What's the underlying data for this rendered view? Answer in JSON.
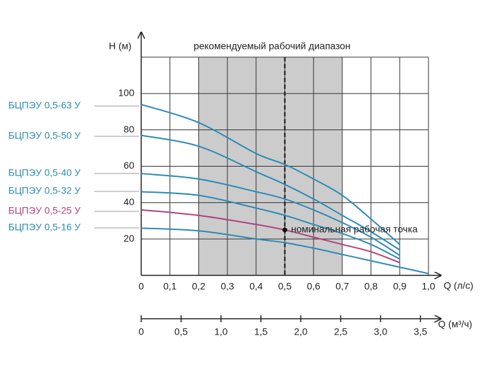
{
  "chart_data": {
    "type": "line",
    "title": "рекомендуемый рабочий диапазон",
    "y_label": "H (м)",
    "x_label": "Q (л/с)",
    "x2_label": "Q (м³/ч)",
    "annotation": "номинальная рабочая точка",
    "nominal_point": {
      "x": 0.5,
      "y": 25
    },
    "shaded_range": [
      0.2,
      0.7
    ],
    "shade_color": "#cccccc",
    "xlim": [
      0,
      1.0
    ],
    "ylim": [
      0,
      120
    ],
    "xticks": [
      0,
      {
        "value": 0.1,
        "label": "0,1"
      },
      {
        "value": 0.2,
        "label": "0,2"
      },
      {
        "value": 0.3,
        "label": "0,3"
      },
      {
        "value": 0.4,
        "label": "0,4"
      },
      {
        "value": 0.5,
        "label": "0,5"
      },
      {
        "value": 0.6,
        "label": "0,6"
      },
      {
        "value": 0.7,
        "label": "0,7"
      },
      {
        "value": 0.8,
        "label": "0,8"
      },
      {
        "value": 0.9,
        "label": "0,9"
      },
      {
        "value": 1.0,
        "label": "1,0"
      }
    ],
    "yticks": [
      20,
      40,
      60,
      80,
      100
    ],
    "x2lim": [
      0,
      3.6
    ],
    "x2ticks": [
      0,
      {
        "value": 0.5,
        "label": "0,5"
      },
      {
        "value": 1.0,
        "label": "1,0"
      },
      {
        "value": 1.5,
        "label": "1,5"
      },
      {
        "value": 2.0,
        "label": "2,0"
      },
      {
        "value": 2.5,
        "label": "2,5"
      },
      {
        "value": 3.0,
        "label": "3,0"
      },
      {
        "value": 3.5,
        "label": "3,5"
      }
    ],
    "grid": true,
    "series": [
      {
        "name": "БЦПЭУ 0,5-63 У",
        "color": "#2a8bb5",
        "x": [
          0,
          0.2,
          0.4,
          0.5,
          0.6,
          0.7,
          0.8,
          0.9
        ],
        "values": [
          94,
          84,
          67,
          61,
          53,
          44,
          31,
          17
        ]
      },
      {
        "name": "БЦПЭУ 0,5-50 У",
        "color": "#2a8bb5",
        "x": [
          0,
          0.2,
          0.4,
          0.5,
          0.6,
          0.7,
          0.8,
          0.9
        ],
        "values": [
          77,
          71,
          57,
          50,
          42,
          33,
          24,
          14
        ]
      },
      {
        "name": "БЦПЭУ 0,5-40 У",
        "color": "#2a8bb5",
        "x": [
          0,
          0.2,
          0.4,
          0.5,
          0.6,
          0.7,
          0.8,
          0.9
        ],
        "values": [
          56,
          53,
          46,
          42,
          36,
          29,
          21,
          11
        ]
      },
      {
        "name": "БЦПЭУ 0,5-32 У",
        "color": "#2a8bb5",
        "x": [
          0,
          0.2,
          0.4,
          0.5,
          0.6,
          0.7,
          0.8,
          0.9
        ],
        "values": [
          46,
          44,
          37,
          33,
          28,
          23,
          17,
          9
        ]
      },
      {
        "name": "БЦПЭУ 0,5-25 У",
        "color": "#b0407e",
        "x": [
          0,
          0.2,
          0.4,
          0.5,
          0.6,
          0.7,
          0.8,
          0.9
        ],
        "values": [
          36,
          33,
          28,
          25,
          21,
          17,
          13,
          7
        ]
      },
      {
        "name": "БЦПЭУ 0,5-16 У",
        "color": "#2a8bb5",
        "x": [
          0,
          0.2,
          0.4,
          0.5,
          0.6,
          0.7,
          0.8,
          0.9,
          1.0
        ],
        "values": [
          26,
          24.5,
          20,
          18,
          15,
          11.5,
          8,
          4.5,
          1
        ]
      }
    ]
  }
}
